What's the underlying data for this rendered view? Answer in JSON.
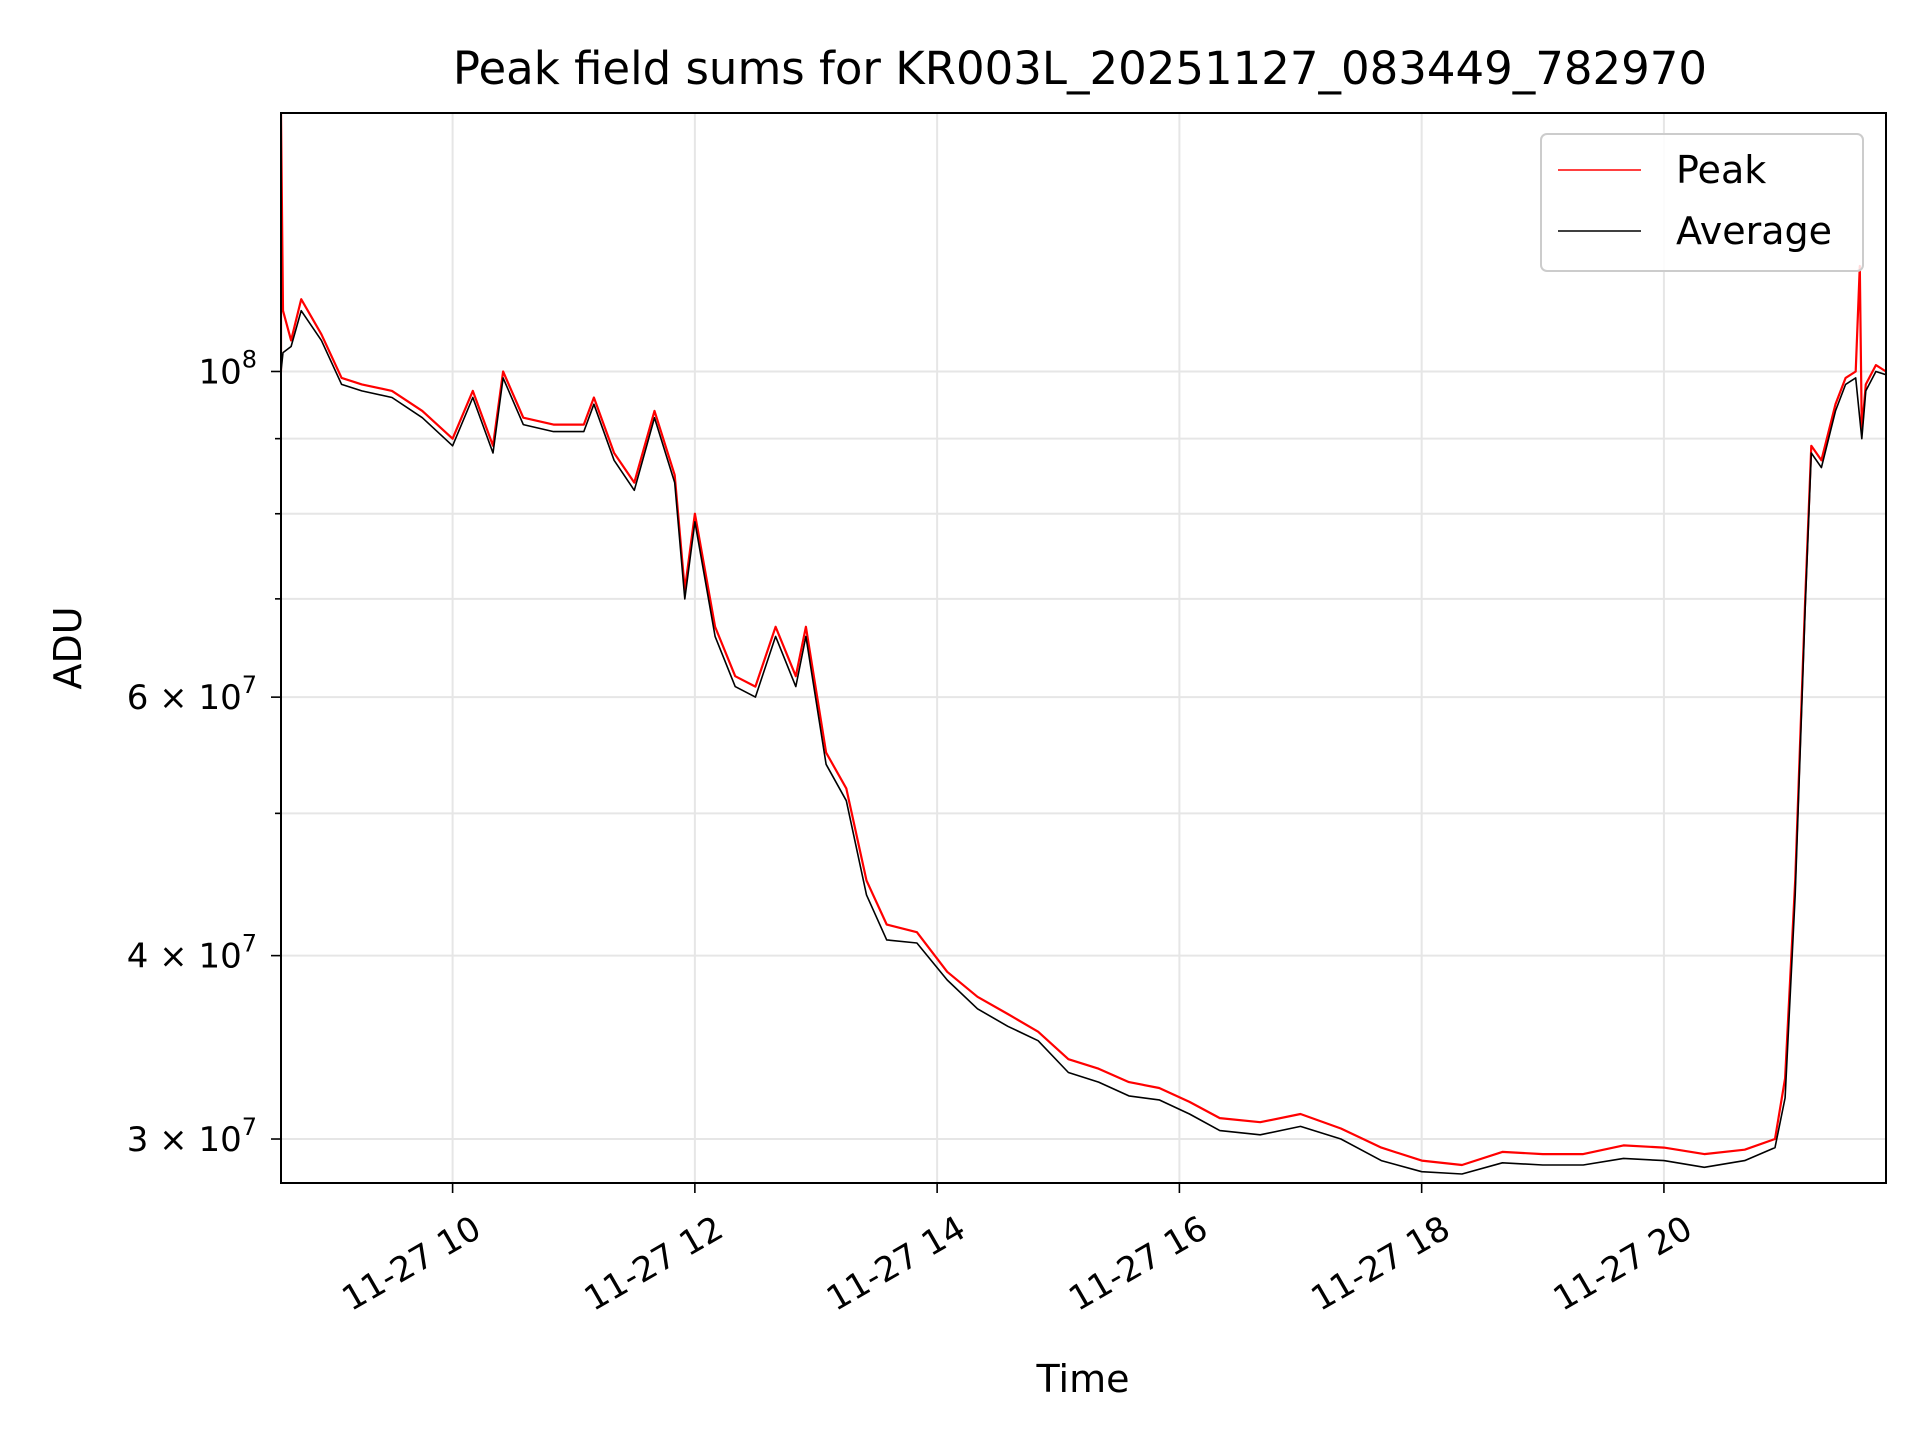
{
  "chart_data": {
    "type": "line",
    "title": "Peak field sums for KR003L_20251127_083449_782970",
    "xlabel": "Time",
    "ylabel": "ADU",
    "x_type": "datetime",
    "x_range": [
      "2025-11-27 08:35",
      "2025-11-27 21:50"
    ],
    "y_scale": "log",
    "ylim": [
      28000000,
      150000000
    ],
    "grid": true,
    "legend_position": "top-right",
    "x_ticks": [
      {
        "t": "2025-11-27 10:00",
        "label": "11-27 10"
      },
      {
        "t": "2025-11-27 12:00",
        "label": "11-27 12"
      },
      {
        "t": "2025-11-27 14:00",
        "label": "11-27 14"
      },
      {
        "t": "2025-11-27 16:00",
        "label": "11-27 16"
      },
      {
        "t": "2025-11-27 18:00",
        "label": "11-27 18"
      },
      {
        "t": "2025-11-27 20:00",
        "label": "11-27 20"
      }
    ],
    "y_major_ticks": [
      {
        "v": 100000000,
        "base": "10",
        "exp": "8"
      },
      {
        "v": 60000000,
        "base": "6 × 10",
        "exp": "7"
      },
      {
        "v": 40000000,
        "base": "4 × 10",
        "exp": "7"
      },
      {
        "v": 30000000,
        "base": "3 × 10",
        "exp": "7"
      }
    ],
    "y_minor_ticks": [
      90000000,
      80000000,
      70000000,
      50000000
    ],
    "series": [
      {
        "name": "Peak",
        "color": "#ff0000",
        "points": [
          [
            "2025-11-27 08:35",
            100000000
          ],
          [
            "2025-11-27 08:35",
            150000000
          ],
          [
            "2025-11-27 08:36",
            110000000
          ],
          [
            "2025-11-27 08:40",
            105000000
          ],
          [
            "2025-11-27 08:45",
            112000000
          ],
          [
            "2025-11-27 08:55",
            106000000
          ],
          [
            "2025-11-27 09:05",
            99000000
          ],
          [
            "2025-11-27 09:15",
            98000000
          ],
          [
            "2025-11-27 09:30",
            97000000
          ],
          [
            "2025-11-27 09:45",
            94000000
          ],
          [
            "2025-11-27 10:00",
            90000000
          ],
          [
            "2025-11-27 10:10",
            97000000
          ],
          [
            "2025-11-27 10:20",
            89000000
          ],
          [
            "2025-11-27 10:25",
            100000000
          ],
          [
            "2025-11-27 10:35",
            93000000
          ],
          [
            "2025-11-27 10:50",
            92000000
          ],
          [
            "2025-11-27 11:05",
            92000000
          ],
          [
            "2025-11-27 11:10",
            96000000
          ],
          [
            "2025-11-27 11:20",
            88000000
          ],
          [
            "2025-11-27 11:30",
            84000000
          ],
          [
            "2025-11-27 11:40",
            94000000
          ],
          [
            "2025-11-27 11:50",
            85000000
          ],
          [
            "2025-11-27 11:55",
            71000000
          ],
          [
            "2025-11-27 12:00",
            80000000
          ],
          [
            "2025-11-27 12:10",
            67000000
          ],
          [
            "2025-11-27 12:20",
            62000000
          ],
          [
            "2025-11-27 12:30",
            61000000
          ],
          [
            "2025-11-27 12:40",
            67000000
          ],
          [
            "2025-11-27 12:50",
            62000000
          ],
          [
            "2025-11-27 12:55",
            67000000
          ],
          [
            "2025-11-27 13:05",
            55000000
          ],
          [
            "2025-11-27 13:15",
            52000000
          ],
          [
            "2025-11-27 13:25",
            45000000
          ],
          [
            "2025-11-27 13:35",
            42000000
          ],
          [
            "2025-11-27 13:50",
            41500000
          ],
          [
            "2025-11-27 14:05",
            39000000
          ],
          [
            "2025-11-27 14:20",
            37500000
          ],
          [
            "2025-11-27 14:35",
            36500000
          ],
          [
            "2025-11-27 14:50",
            35500000
          ],
          [
            "2025-11-27 15:05",
            34000000
          ],
          [
            "2025-11-27 15:20",
            33500000
          ],
          [
            "2025-11-27 15:35",
            32800000
          ],
          [
            "2025-11-27 15:50",
            32500000
          ],
          [
            "2025-11-27 16:05",
            31800000
          ],
          [
            "2025-11-27 16:20",
            31000000
          ],
          [
            "2025-11-27 16:40",
            30800000
          ],
          [
            "2025-11-27 17:00",
            31200000
          ],
          [
            "2025-11-27 17:20",
            30500000
          ],
          [
            "2025-11-27 17:40",
            29600000
          ],
          [
            "2025-11-27 18:00",
            29000000
          ],
          [
            "2025-11-27 18:20",
            28800000
          ],
          [
            "2025-11-27 18:40",
            29400000
          ],
          [
            "2025-11-27 19:00",
            29300000
          ],
          [
            "2025-11-27 19:20",
            29300000
          ],
          [
            "2025-11-27 19:40",
            29700000
          ],
          [
            "2025-11-27 20:00",
            29600000
          ],
          [
            "2025-11-27 20:20",
            29300000
          ],
          [
            "2025-11-27 20:40",
            29500000
          ],
          [
            "2025-11-27 20:55",
            30000000
          ],
          [
            "2025-11-27 21:00",
            33000000
          ],
          [
            "2025-11-27 21:05",
            45000000
          ],
          [
            "2025-11-27 21:10",
            70000000
          ],
          [
            "2025-11-27 21:13",
            89000000
          ],
          [
            "2025-11-27 21:18",
            87000000
          ],
          [
            "2025-11-27 21:25",
            95000000
          ],
          [
            "2025-11-27 21:30",
            99000000
          ],
          [
            "2025-11-27 21:35",
            100000000
          ],
          [
            "2025-11-27 21:37",
            118000000
          ],
          [
            "2025-11-27 21:38",
            91000000
          ],
          [
            "2025-11-27 21:40",
            98000000
          ],
          [
            "2025-11-27 21:45",
            101000000
          ],
          [
            "2025-11-27 21:50",
            100000000
          ]
        ]
      },
      {
        "name": "Average",
        "color": "#000000",
        "points": [
          [
            "2025-11-27 08:35",
            100000000
          ],
          [
            "2025-11-27 08:36",
            103000000
          ],
          [
            "2025-11-27 08:40",
            104000000
          ],
          [
            "2025-11-27 08:45",
            110000000
          ],
          [
            "2025-11-27 08:55",
            105000000
          ],
          [
            "2025-11-27 09:05",
            98000000
          ],
          [
            "2025-11-27 09:15",
            97000000
          ],
          [
            "2025-11-27 09:30",
            96000000
          ],
          [
            "2025-11-27 09:45",
            93000000
          ],
          [
            "2025-11-27 10:00",
            89000000
          ],
          [
            "2025-11-27 10:10",
            96000000
          ],
          [
            "2025-11-27 10:20",
            88000000
          ],
          [
            "2025-11-27 10:25",
            99000000
          ],
          [
            "2025-11-27 10:35",
            92000000
          ],
          [
            "2025-11-27 10:50",
            91000000
          ],
          [
            "2025-11-27 11:05",
            91000000
          ],
          [
            "2025-11-27 11:10",
            95000000
          ],
          [
            "2025-11-27 11:20",
            87000000
          ],
          [
            "2025-11-27 11:30",
            83000000
          ],
          [
            "2025-11-27 11:40",
            93000000
          ],
          [
            "2025-11-27 11:50",
            84000000
          ],
          [
            "2025-11-27 11:55",
            70000000
          ],
          [
            "2025-11-27 12:00",
            79000000
          ],
          [
            "2025-11-27 12:10",
            66000000
          ],
          [
            "2025-11-27 12:20",
            61000000
          ],
          [
            "2025-11-27 12:30",
            60000000
          ],
          [
            "2025-11-27 12:40",
            66000000
          ],
          [
            "2025-11-27 12:50",
            61000000
          ],
          [
            "2025-11-27 12:55",
            66000000
          ],
          [
            "2025-11-27 13:05",
            54000000
          ],
          [
            "2025-11-27 13:15",
            51000000
          ],
          [
            "2025-11-27 13:25",
            44000000
          ],
          [
            "2025-11-27 13:35",
            41000000
          ],
          [
            "2025-11-27 13:50",
            40800000
          ],
          [
            "2025-11-27 14:05",
            38500000
          ],
          [
            "2025-11-27 14:20",
            36800000
          ],
          [
            "2025-11-27 14:35",
            35800000
          ],
          [
            "2025-11-27 14:50",
            35000000
          ],
          [
            "2025-11-27 15:05",
            33300000
          ],
          [
            "2025-11-27 15:20",
            32800000
          ],
          [
            "2025-11-27 15:35",
            32100000
          ],
          [
            "2025-11-27 15:50",
            31900000
          ],
          [
            "2025-11-27 16:05",
            31200000
          ],
          [
            "2025-11-27 16:20",
            30400000
          ],
          [
            "2025-11-27 16:40",
            30200000
          ],
          [
            "2025-11-27 17:00",
            30600000
          ],
          [
            "2025-11-27 17:20",
            30000000
          ],
          [
            "2025-11-27 17:40",
            29000000
          ],
          [
            "2025-11-27 18:00",
            28500000
          ],
          [
            "2025-11-27 18:20",
            28400000
          ],
          [
            "2025-11-27 18:40",
            28900000
          ],
          [
            "2025-11-27 19:00",
            28800000
          ],
          [
            "2025-11-27 19:20",
            28800000
          ],
          [
            "2025-11-27 19:40",
            29100000
          ],
          [
            "2025-11-27 20:00",
            29000000
          ],
          [
            "2025-11-27 20:20",
            28700000
          ],
          [
            "2025-11-27 20:40",
            29000000
          ],
          [
            "2025-11-27 20:55",
            29600000
          ],
          [
            "2025-11-27 21:00",
            32000000
          ],
          [
            "2025-11-27 21:05",
            44000000
          ],
          [
            "2025-11-27 21:10",
            69000000
          ],
          [
            "2025-11-27 21:13",
            88000000
          ],
          [
            "2025-11-27 21:18",
            86000000
          ],
          [
            "2025-11-27 21:25",
            94000000
          ],
          [
            "2025-11-27 21:30",
            98000000
          ],
          [
            "2025-11-27 21:35",
            99000000
          ],
          [
            "2025-11-27 21:38",
            90000000
          ],
          [
            "2025-11-27 21:40",
            97000000
          ],
          [
            "2025-11-27 21:45",
            100000000
          ],
          [
            "2025-11-27 21:50",
            99500000
          ]
        ]
      }
    ]
  }
}
